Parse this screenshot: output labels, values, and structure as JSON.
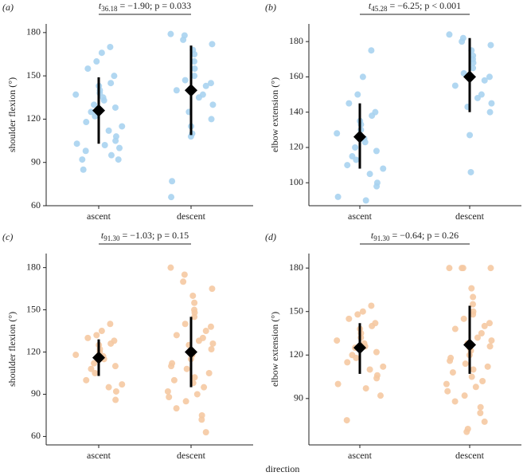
{
  "x_label": "direction",
  "chart_data": [
    {
      "type": "strip",
      "panel_label": "(a)",
      "annotation": {
        "stat": "t",
        "df": "36.18",
        "rest": " = −1.90; p = 0.033"
      },
      "y_label": "shoulder flexion (°)",
      "categories": [
        "ascent",
        "descent"
      ],
      "color": "#a9d3ef",
      "points": [
        [
          170,
          166,
          160,
          155,
          150,
          145,
          143,
          140,
          138,
          137,
          135,
          133,
          130,
          128,
          125,
          122,
          118,
          115,
          112,
          108,
          105,
          103,
          102,
          100,
          98,
          95,
          92,
          92,
          85
        ],
        [
          179,
          178,
          175,
          172,
          168,
          165,
          160,
          155,
          150,
          147,
          145,
          143,
          140,
          137,
          135,
          130,
          125,
          120,
          115,
          110,
          108,
          77,
          66
        ]
      ],
      "means": [
        126,
        140
      ],
      "sd_low": [
        103,
        109
      ],
      "sd_high": [
        149,
        171
      ],
      "ylim": [
        60,
        186
      ],
      "yticks": [
        60,
        90,
        120,
        150,
        180
      ]
    },
    {
      "type": "strip",
      "panel_label": "(b)",
      "annotation": {
        "stat": "t",
        "df": "45.28",
        "rest": " = −6.25; p < 0.001"
      },
      "y_label": "elbow extension (°)",
      "categories": [
        "ascent",
        "descent"
      ],
      "color": "#a9d3ef",
      "points": [
        [
          175,
          160,
          150,
          145,
          140,
          138,
          135,
          133,
          130,
          128,
          125,
          123,
          120,
          118,
          115,
          113,
          110,
          108,
          105,
          100,
          98,
          92,
          90
        ],
        [
          184,
          182,
          180,
          178,
          175,
          172,
          170,
          168,
          165,
          162,
          160,
          158,
          155,
          150,
          148,
          145,
          143,
          140,
          127,
          106
        ]
      ],
      "means": [
        126,
        160
      ],
      "sd_low": [
        108,
        140
      ],
      "sd_high": [
        145,
        182
      ],
      "ylim": [
        87,
        190
      ],
      "yticks": [
        100,
        120,
        140,
        160,
        180
      ]
    },
    {
      "type": "strip",
      "panel_label": "(c)",
      "annotation": {
        "stat": "t",
        "df": "91.30",
        "rest": " = −1.03; p = 0.15"
      },
      "y_label": "shoulder flexion (°)",
      "categories": [
        "ascent",
        "descent"
      ],
      "color": "#f5c9a2",
      "points": [
        [
          140,
          135,
          132,
          130,
          128,
          126,
          125,
          122,
          120,
          118,
          117,
          115,
          112,
          110,
          108,
          105,
          100,
          97,
          95,
          92,
          86
        ],
        [
          180,
          175,
          170,
          165,
          160,
          155,
          150,
          148,
          145,
          140,
          138,
          135,
          132,
          130,
          128,
          126,
          125,
          122,
          120,
          118,
          115,
          112,
          110,
          108,
          105,
          102,
          100,
          98,
          95,
          92,
          90,
          88,
          85,
          80,
          75,
          72,
          63
        ]
      ],
      "means": [
        116,
        120
      ],
      "sd_low": [
        103,
        95
      ],
      "sd_high": [
        129,
        145
      ],
      "ylim": [
        54,
        190
      ],
      "yticks": [
        60,
        90,
        120,
        150,
        180
      ]
    },
    {
      "type": "strip",
      "panel_label": "(d)",
      "annotation": {
        "stat": "t",
        "df": "91.30",
        "rest": " = −0.64; p = 0.26"
      },
      "y_label": "elbow extension (°)",
      "categories": [
        "ascent",
        "descent"
      ],
      "color": "#f5c9a2",
      "points": [
        [
          154,
          150,
          148,
          145,
          142,
          140,
          138,
          135,
          132,
          130,
          128,
          126,
          125,
          122,
          120,
          118,
          115,
          112,
          110,
          106,
          104,
          100,
          97,
          92,
          75
        ],
        [
          180,
          180,
          180,
          180,
          166,
          160,
          155,
          150,
          148,
          145,
          142,
          140,
          138,
          135,
          132,
          130,
          128,
          126,
          125,
          123,
          120,
          118,
          116,
          114,
          112,
          110,
          108,
          105,
          102,
          100,
          98,
          95,
          92,
          88,
          84,
          80,
          74,
          69,
          67
        ]
      ],
      "means": [
        125,
        127
      ],
      "sd_low": [
        107,
        107
      ],
      "sd_high": [
        142,
        154
      ],
      "ylim": [
        58,
        190
      ],
      "yticks": [
        90,
        120,
        150,
        180
      ]
    }
  ]
}
